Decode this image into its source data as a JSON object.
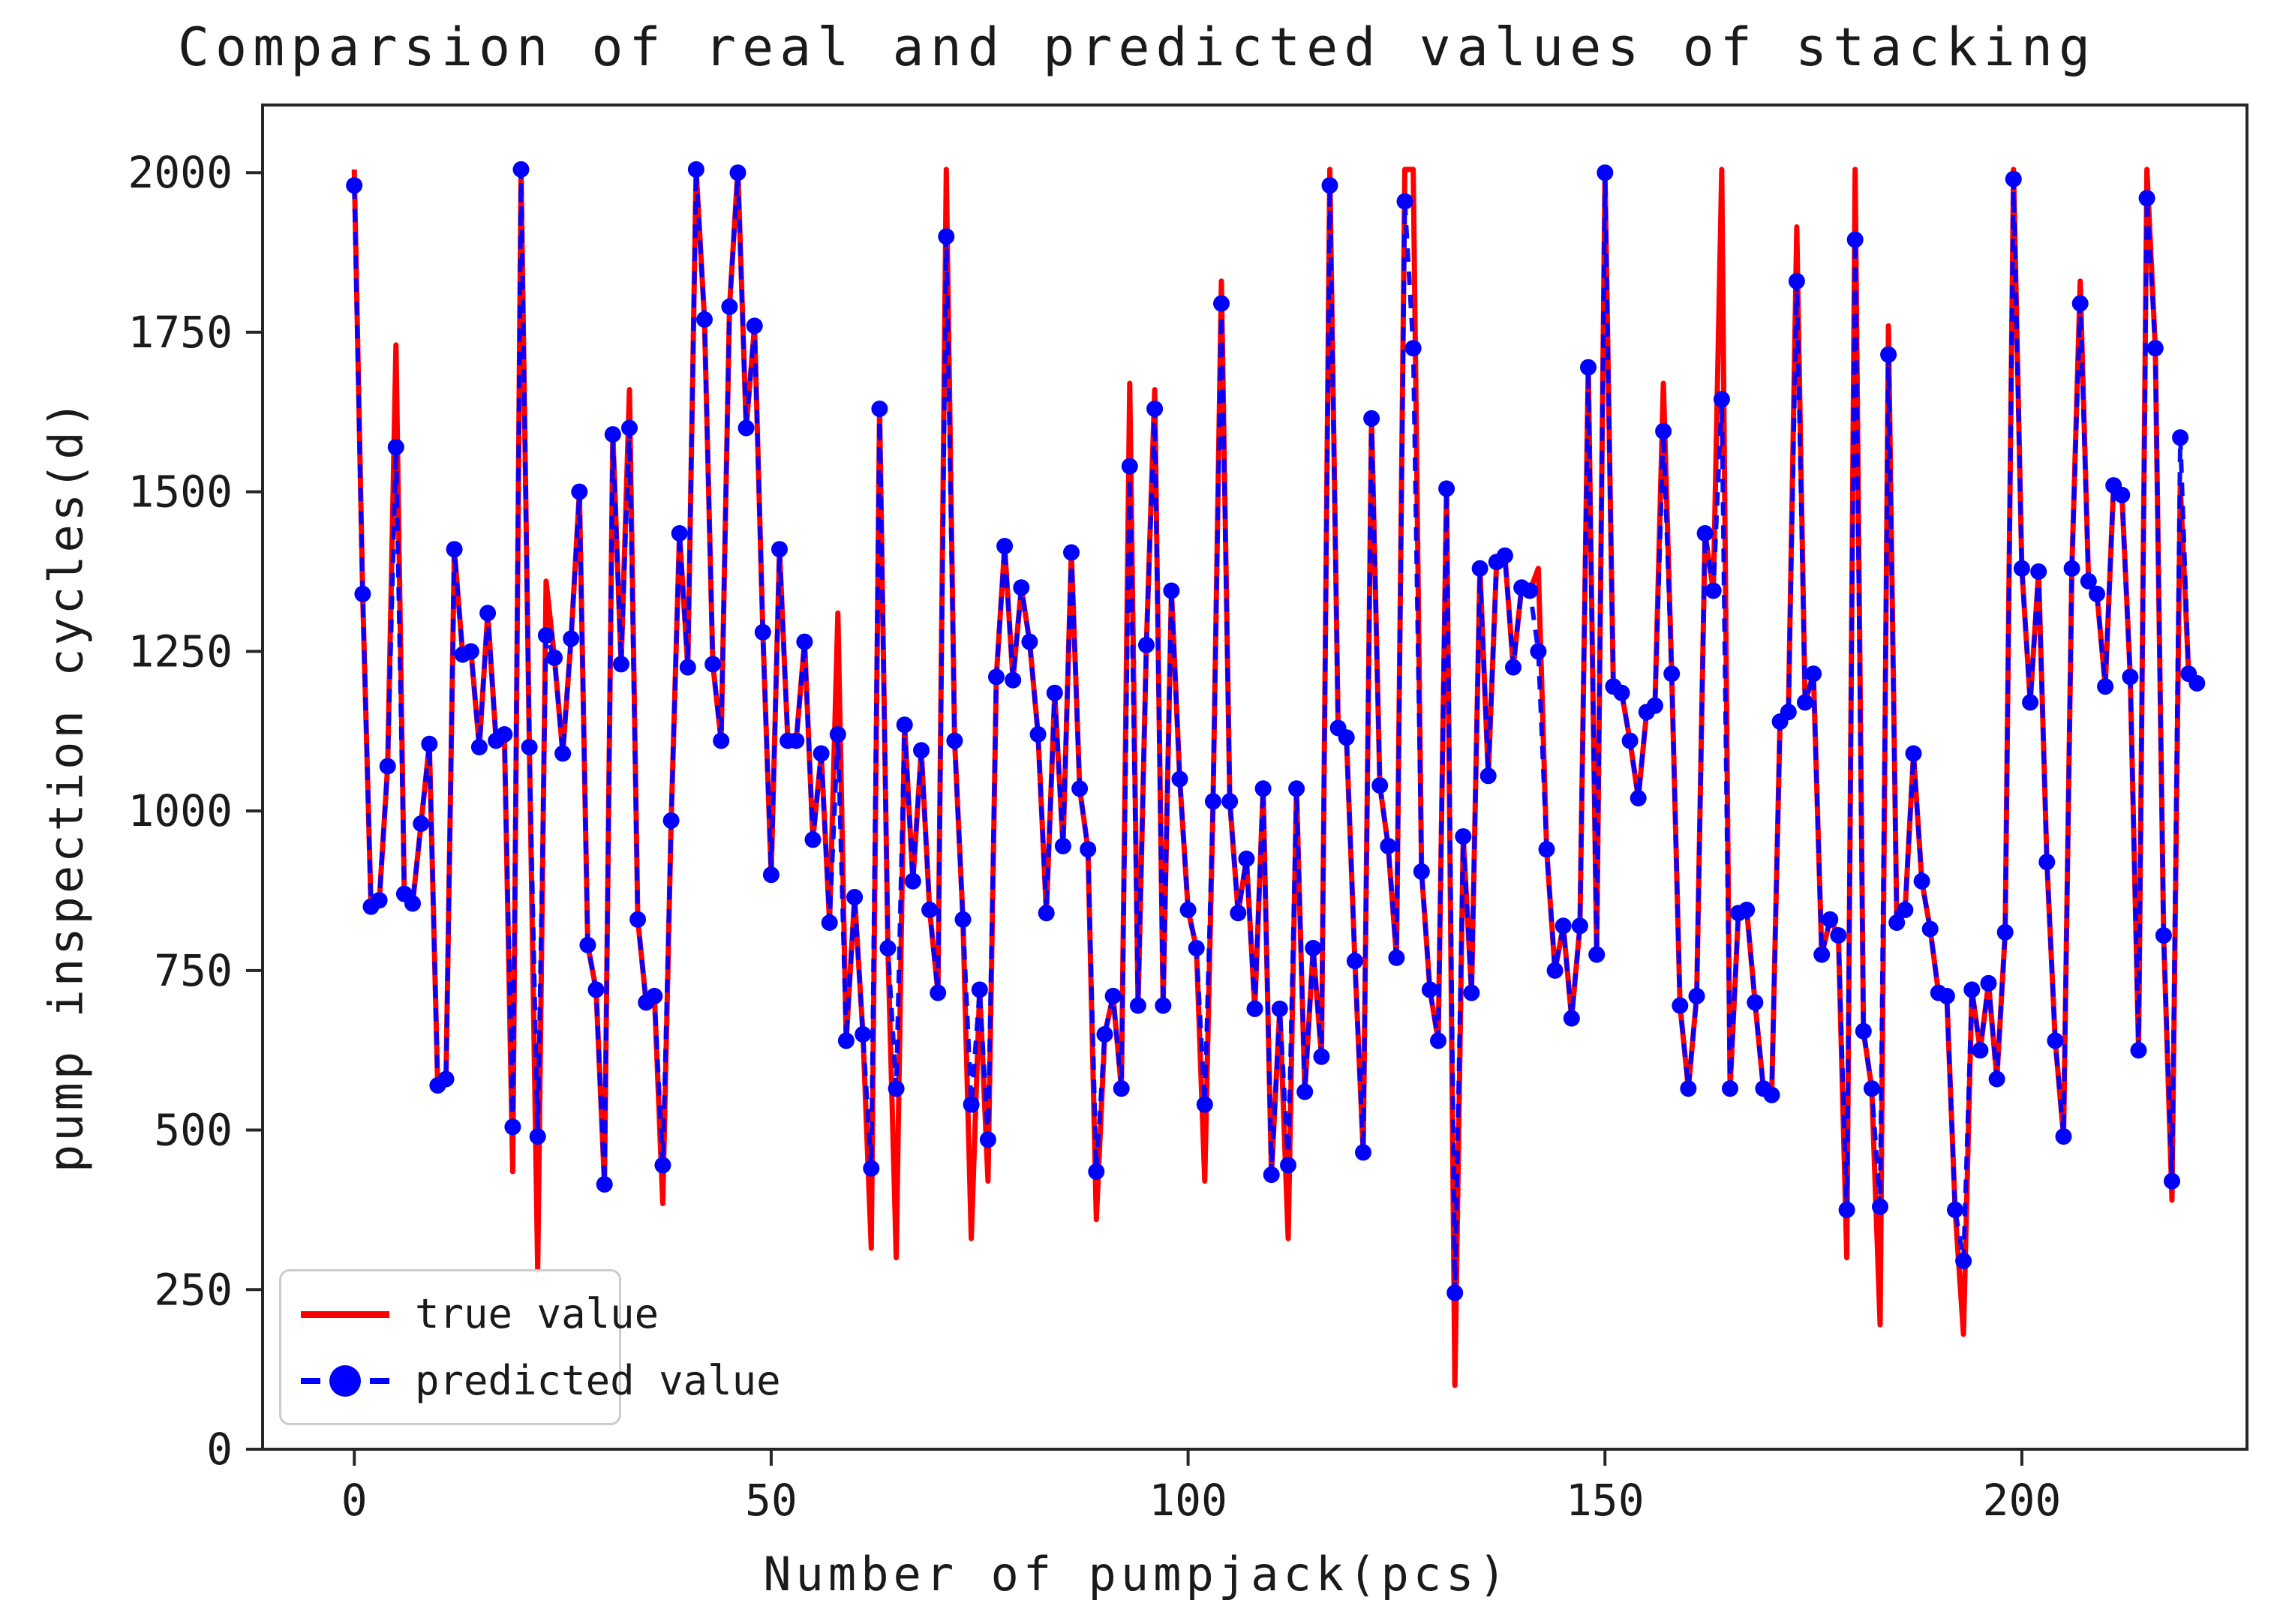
{
  "title": "Comparsion of real and predicted values of stacking",
  "axes": {
    "xlabel": "Number of pumpjack(pcs)",
    "ylabel": "pump inspection cycles(d)",
    "xticks": [
      0,
      50,
      100,
      150,
      200
    ],
    "yticks": [
      0,
      250,
      500,
      750,
      1000,
      1250,
      1500,
      1750,
      2000
    ]
  },
  "legend": {
    "items": [
      {
        "label": "true value",
        "color": "#ff0000",
        "style": "solid"
      },
      {
        "label": "predicted value",
        "color": "#0000ff",
        "style": "dashed-marker"
      }
    ],
    "position": "lower left"
  },
  "chart_data": {
    "type": "line",
    "x_description": "pumpjack index, 0..221 step 1",
    "n_points": 222,
    "xlim": [
      -11,
      227
    ],
    "ylim": [
      0,
      2106
    ],
    "grid": false,
    "series": [
      {
        "name": "true value",
        "color": "#ff0000",
        "line_style": "solid",
        "marker": "none",
        "values": [
          2005,
          1340,
          850,
          860,
          1070,
          1730,
          870,
          855,
          980,
          1105,
          570,
          580,
          1410,
          1245,
          1250,
          1100,
          1310,
          1110,
          1120,
          435,
          2005,
          1100,
          280,
          1360,
          1240,
          1090,
          1270,
          1500,
          790,
          720,
          415,
          1590,
          1230,
          1660,
          830,
          700,
          710,
          385,
          985,
          1435,
          1225,
          2005,
          1770,
          1230,
          1110,
          1790,
          2005,
          1600,
          1760,
          1280,
          900,
          1410,
          1110,
          1110,
          1265,
          955,
          1090,
          825,
          1310,
          640,
          865,
          650,
          315,
          1630,
          785,
          300,
          1135,
          890,
          1095,
          845,
          715,
          2005,
          1110,
          830,
          330,
          720,
          420,
          1210,
          1415,
          1205,
          1350,
          1265,
          1120,
          840,
          1185,
          945,
          1405,
          1035,
          940,
          360,
          650,
          710,
          565,
          1670,
          695,
          1260,
          1660,
          695,
          1345,
          1050,
          845,
          785,
          420,
          1015,
          1830,
          1015,
          840,
          925,
          690,
          1035,
          430,
          690,
          330,
          1035,
          560,
          785,
          615,
          2005,
          1130,
          1115,
          765,
          465,
          1615,
          1040,
          945,
          770,
          2005,
          2005,
          905,
          720,
          640,
          1505,
          100,
          960,
          715,
          1380,
          1055,
          1390,
          1400,
          1225,
          1350,
          1345,
          1380,
          940,
          750,
          820,
          675,
          820,
          1700,
          775,
          2000,
          1195,
          1185,
          1110,
          1020,
          1155,
          1165,
          1670,
          1215,
          695,
          565,
          710,
          1435,
          1345,
          2005,
          565,
          840,
          845,
          700,
          565,
          555,
          1140,
          1155,
          1915,
          1170,
          1215,
          775,
          830,
          805,
          300,
          2005,
          655,
          565,
          195,
          1760,
          825,
          845,
          1090,
          890,
          815,
          715,
          710,
          375,
          180,
          720,
          625,
          730,
          580,
          810,
          2005,
          1380,
          1170,
          1375,
          920,
          640,
          490,
          1380,
          1830,
          1360,
          1340,
          1195,
          1510,
          1495,
          1210,
          625,
          2005,
          1725,
          805,
          390,
          1510,
          1215,
          1200
        ]
      },
      {
        "name": "predicted value",
        "color": "#0000ff",
        "line_style": "dashed",
        "marker": "circle",
        "values": [
          1980,
          1340,
          850,
          860,
          1070,
          1570,
          870,
          855,
          980,
          1105,
          570,
          580,
          1410,
          1245,
          1250,
          1100,
          1310,
          1110,
          1120,
          505,
          2005,
          1100,
          490,
          1275,
          1240,
          1090,
          1270,
          1500,
          790,
          720,
          415,
          1590,
          1230,
          1600,
          830,
          700,
          710,
          445,
          985,
          1435,
          1225,
          2005,
          1770,
          1230,
          1110,
          1790,
          2000,
          1600,
          1760,
          1280,
          900,
          1410,
          1110,
          1110,
          1265,
          955,
          1090,
          825,
          1120,
          640,
          865,
          650,
          440,
          1630,
          785,
          565,
          1135,
          890,
          1095,
          845,
          715,
          1900,
          1110,
          830,
          540,
          720,
          485,
          1210,
          1415,
          1205,
          1350,
          1265,
          1120,
          840,
          1185,
          945,
          1405,
          1035,
          940,
          435,
          650,
          710,
          565,
          1540,
          695,
          1260,
          1630,
          695,
          1345,
          1050,
          845,
          785,
          540,
          1015,
          1795,
          1015,
          840,
          925,
          690,
          1035,
          430,
          690,
          445,
          1035,
          560,
          785,
          615,
          1980,
          1130,
          1115,
          765,
          465,
          1615,
          1040,
          945,
          770,
          1955,
          1725,
          905,
          720,
          640,
          1505,
          245,
          960,
          715,
          1380,
          1055,
          1390,
          1400,
          1225,
          1350,
          1345,
          1250,
          940,
          750,
          820,
          675,
          820,
          1695,
          775,
          2000,
          1195,
          1185,
          1110,
          1020,
          1155,
          1165,
          1595,
          1215,
          695,
          565,
          710,
          1435,
          1345,
          1645,
          565,
          840,
          845,
          700,
          565,
          555,
          1140,
          1155,
          1830,
          1170,
          1215,
          775,
          830,
          805,
          375,
          1895,
          655,
          565,
          380,
          1715,
          825,
          845,
          1090,
          890,
          815,
          715,
          710,
          375,
          295,
          720,
          625,
          730,
          580,
          810,
          1990,
          1380,
          1170,
          1375,
          920,
          640,
          490,
          1380,
          1795,
          1360,
          1340,
          1195,
          1510,
          1495,
          1210,
          625,
          1960,
          1725,
          805,
          420,
          1585,
          1215,
          1200
        ]
      }
    ]
  }
}
